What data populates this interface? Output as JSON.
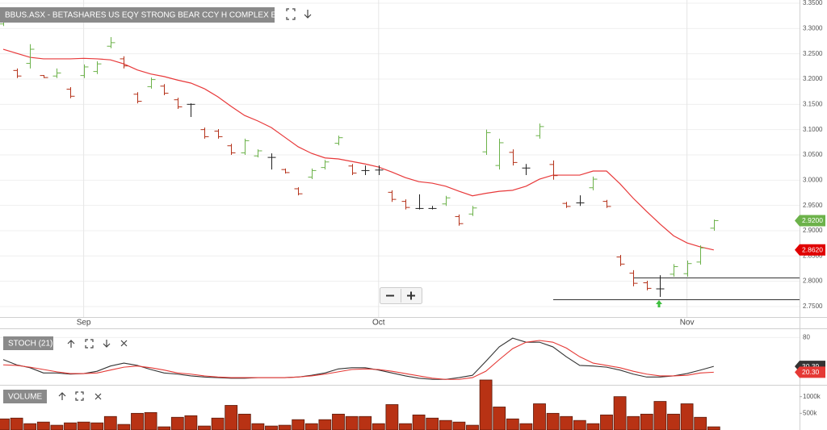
{
  "chart_data": [
    {
      "type": "ohlc",
      "title": "BBUS.ASX - BETASHARES US EQY STRONG BEAR CCY H COMPLEX ETF",
      "categories": [
        null,
        null,
        null,
        null,
        null,
        null,
        "Sep",
        null,
        null,
        null,
        null,
        null,
        null,
        null,
        null,
        null,
        null,
        null,
        null,
        null,
        null,
        null,
        null,
        null,
        null,
        null,
        null,
        null,
        "Oct",
        null,
        null,
        null,
        null,
        null,
        null,
        null,
        null,
        null,
        null,
        null,
        null,
        null,
        null,
        null,
        null,
        null,
        null,
        null,
        null,
        null,
        null,
        "Nov",
        null,
        null
      ],
      "ohlc": [
        [
          3.309,
          3.324,
          3.305,
          3.32
        ],
        [
          3.217,
          3.221,
          3.202,
          3.206
        ],
        [
          3.231,
          3.269,
          3.221,
          3.259
        ],
        [
          3.207,
          3.208,
          3.202,
          3.203
        ],
        [
          3.206,
          3.221,
          3.202,
          3.212
        ],
        [
          3.18,
          3.184,
          3.162,
          3.166
        ],
        [
          3.207,
          3.229,
          3.202,
          3.224
        ],
        [
          3.215,
          3.235,
          3.21,
          3.23
        ],
        [
          3.265,
          3.283,
          3.261,
          3.272
        ],
        [
          3.24,
          3.245,
          3.221,
          3.226
        ],
        [
          3.17,
          3.174,
          3.152,
          3.156
        ],
        [
          3.185,
          3.203,
          3.181,
          3.199
        ],
        [
          3.186,
          3.19,
          3.168,
          3.172
        ],
        [
          3.159,
          3.163,
          3.141,
          3.145
        ],
        [
          3.15,
          3.152,
          3.125,
          3.15
        ],
        [
          3.1,
          3.104,
          3.082,
          3.086
        ],
        [
          3.097,
          3.101,
          3.082,
          3.086
        ],
        [
          3.068,
          3.072,
          3.05,
          3.054
        ],
        [
          3.054,
          3.082,
          3.05,
          3.078
        ],
        [
          3.048,
          3.061,
          3.045,
          3.058
        ],
        [
          3.045,
          3.053,
          3.021,
          3.045
        ],
        [
          3.021,
          3.023,
          3.013,
          3.015
        ],
        [
          2.983,
          2.986,
          2.97,
          2.973
        ],
        [
          3.006,
          3.023,
          3.002,
          3.019
        ],
        [
          3.025,
          3.04,
          3.021,
          3.036
        ],
        [
          3.073,
          3.088,
          3.069,
          3.084
        ],
        [
          3.028,
          3.032,
          3.01,
          3.014
        ],
        [
          3.019,
          3.029,
          3.01,
          3.019
        ],
        [
          3.02,
          3.029,
          3.01,
          3.02
        ],
        [
          2.976,
          2.98,
          2.957,
          2.962
        ],
        [
          2.958,
          2.962,
          2.942,
          2.946
        ],
        [
          2.944,
          2.972,
          2.942,
          2.944
        ],
        [
          2.944,
          2.949,
          2.942,
          2.944
        ],
        [
          2.953,
          2.969,
          2.949,
          2.965
        ],
        [
          2.928,
          2.932,
          2.91,
          2.914
        ],
        [
          2.933,
          2.949,
          2.929,
          2.945
        ],
        [
          3.056,
          3.1,
          3.05,
          3.094
        ],
        [
          3.029,
          3.082,
          3.021,
          3.074
        ],
        [
          3.055,
          3.061,
          3.029,
          3.035
        ],
        [
          3.024,
          3.032,
          3.01,
          3.024
        ],
        [
          3.088,
          3.112,
          3.082,
          3.106
        ],
        [
          3.031,
          3.039,
          3.001,
          3.009
        ],
        [
          2.954,
          2.957,
          2.945,
          2.948
        ],
        [
          2.955,
          2.97,
          2.949,
          2.955
        ],
        [
          2.985,
          3.007,
          2.98,
          3.002
        ],
        [
          2.958,
          2.961,
          2.945,
          2.948
        ],
        [
          2.848,
          2.852,
          2.83,
          2.834
        ],
        [
          2.816,
          2.822,
          2.79,
          2.796
        ],
        [
          2.797,
          2.801,
          2.782,
          2.786
        ],
        [
          2.785,
          2.812,
          2.769,
          2.785
        ],
        [
          2.814,
          2.834,
          2.809,
          2.829
        ],
        [
          2.815,
          2.841,
          2.809,
          2.835
        ],
        [
          2.838,
          2.871,
          2.833,
          2.866
        ],
        [
          2.905,
          2.922,
          2.9,
          2.92
        ]
      ],
      "colors": {
        "up": "#6cb24a",
        "down": "#b5321a",
        "flat": "#222222"
      },
      "ma": {
        "color": "#e8393a",
        "values": [
          3.259,
          3.251,
          3.243,
          3.24,
          3.24,
          3.24,
          3.241,
          3.24,
          3.238,
          3.23,
          3.218,
          3.21,
          3.205,
          3.198,
          3.192,
          3.181,
          3.165,
          3.146,
          3.128,
          3.117,
          3.104,
          3.085,
          3.066,
          3.053,
          3.044,
          3.042,
          3.037,
          3.032,
          3.026,
          3.016,
          3.005,
          2.997,
          2.994,
          2.988,
          2.978,
          2.969,
          2.974,
          2.978,
          2.98,
          2.988,
          3.002,
          3.01,
          3.01,
          3.01,
          3.018,
          3.018,
          2.993,
          2.964,
          2.938,
          2.913,
          2.89,
          2.876,
          2.868,
          2.862
        ]
      },
      "last_labels": [
        "2.9200",
        "2.8620"
      ],
      "levels": [
        {
          "value": 2.765,
          "start": 45
        },
        {
          "value": 2.807,
          "start": 51
        }
      ],
      "ylim": [
        2.73,
        3.35
      ],
      "yticks": [
        {
          "value": 3.35,
          "label": "3.3500"
        },
        {
          "value": 3.3,
          "label": "3.3000"
        },
        {
          "value": 3.25,
          "label": "3.2500"
        },
        {
          "value": 3.2,
          "label": "3.2000"
        },
        {
          "value": 3.15,
          "label": "3.1500"
        },
        {
          "value": 3.1,
          "label": "3.1000"
        },
        {
          "value": 3.05,
          "label": "3.0500"
        },
        {
          "value": 3.0,
          "label": "3.0000"
        },
        {
          "value": 2.95,
          "label": "2.9500"
        },
        {
          "value": 2.9,
          "label": "2.9000"
        },
        {
          "value": 2.85,
          "label": "2.8500"
        },
        {
          "value": 2.8,
          "label": "2.8000"
        },
        {
          "value": 2.75,
          "label": "2.7500"
        }
      ],
      "grid": true
    },
    {
      "type": "line",
      "title": "STOCH (21)",
      "series": [
        {
          "color": "#333333",
          "values": [
            42,
            33,
            28,
            19,
            19,
            17,
            18,
            22,
            31,
            36,
            32,
            25,
            19,
            17,
            14,
            12,
            11,
            10,
            10,
            11,
            11,
            11,
            12,
            15,
            19,
            26,
            28,
            28,
            24,
            19,
            14,
            10,
            8,
            8,
            11,
            15,
            39,
            64,
            79,
            72,
            72,
            64,
            47,
            32,
            31,
            29,
            24,
            17,
            12,
            12,
            14,
            18,
            24,
            30.39
          ]
        },
        {
          "color": "#e53935",
          "values": [
            33,
            32,
            29,
            25,
            21,
            18,
            18,
            19,
            24,
            29,
            31,
            28,
            24,
            19,
            17,
            14,
            12,
            11,
            11,
            11,
            11,
            11,
            12,
            14,
            17,
            21,
            25,
            26,
            25,
            22,
            18,
            14,
            10,
            8,
            8,
            11,
            22,
            42,
            61,
            72,
            75,
            72,
            62,
            47,
            36,
            32,
            28,
            22,
            17,
            14,
            14,
            15,
            19,
            20.3
          ]
        }
      ],
      "last_labels": [
        "30.39",
        "20.30"
      ],
      "ylim": [
        0,
        100
      ],
      "yticks": [
        80
      ]
    },
    {
      "type": "bar",
      "title": "VOLUME",
      "values": [
        333000,
        357000,
        190000,
        238000,
        143000,
        214000,
        238000,
        214000,
        405000,
        167000,
        500000,
        524000,
        95000,
        381000,
        429000,
        119000,
        357000,
        738000,
        476000,
        190000,
        119000,
        143000,
        310000,
        190000,
        310000,
        476000,
        405000,
        405000,
        190000,
        762000,
        190000,
        452000,
        357000,
        286000,
        238000,
        143000,
        1500000,
        690000,
        333000,
        190000,
        786000,
        500000,
        405000,
        286000,
        190000,
        452000,
        1000000,
        405000,
        476000,
        857000,
        476000,
        786000,
        381000,
        95000
      ],
      "color": "#b83214",
      "ylim": [
        0,
        1500000
      ],
      "yticks": [
        {
          "value": 1000000,
          "label": "1000k"
        },
        {
          "value": 500000,
          "label": "500k"
        }
      ]
    }
  ]
}
